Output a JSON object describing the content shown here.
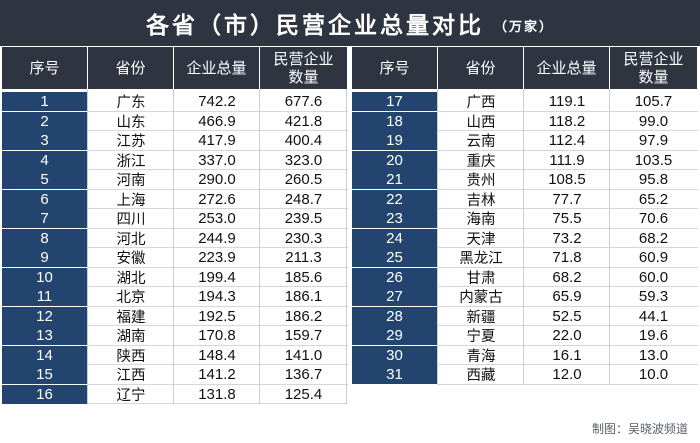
{
  "title": "各省（市）民营企业总量对比",
  "unit": "（万家）",
  "headers": [
    "序号",
    "省份",
    "企业总量",
    "民营企业\n数量"
  ],
  "left_rows": [
    [
      "1",
      "广东",
      "742.2",
      "677.6"
    ],
    [
      "2",
      "山东",
      "466.9",
      "421.8"
    ],
    [
      "3",
      "江苏",
      "417.9",
      "400.4"
    ],
    [
      "4",
      "浙江",
      "337.0",
      "323.0"
    ],
    [
      "5",
      "河南",
      "290.0",
      "260.5"
    ],
    [
      "6",
      "上海",
      "272.6",
      "248.7"
    ],
    [
      "7",
      "四川",
      "253.0",
      "239.5"
    ],
    [
      "8",
      "河北",
      "244.9",
      "230.3"
    ],
    [
      "9",
      "安徽",
      "223.9",
      "211.3"
    ],
    [
      "10",
      "湖北",
      "199.4",
      "185.6"
    ],
    [
      "11",
      "北京",
      "194.3",
      "186.1"
    ],
    [
      "12",
      "福建",
      "192.5",
      "186.2"
    ],
    [
      "13",
      "湖南",
      "170.8",
      "159.7"
    ],
    [
      "14",
      "陕西",
      "148.4",
      "141.0"
    ],
    [
      "15",
      "江西",
      "141.2",
      "136.7"
    ],
    [
      "16",
      "辽宁",
      "131.8",
      "125.4"
    ]
  ],
  "right_rows": [
    [
      "17",
      "广西",
      "119.1",
      "105.7"
    ],
    [
      "18",
      "山西",
      "118.2",
      "99.0"
    ],
    [
      "19",
      "云南",
      "112.4",
      "97.9"
    ],
    [
      "20",
      "重庆",
      "111.9",
      "103.5"
    ],
    [
      "21",
      "贵州",
      "108.5",
      "95.8"
    ],
    [
      "22",
      "吉林",
      "77.7",
      "65.2"
    ],
    [
      "23",
      "海南",
      "75.5",
      "70.6"
    ],
    [
      "24",
      "天津",
      "73.2",
      "68.2"
    ],
    [
      "25",
      "黑龙江",
      "71.8",
      "60.9"
    ],
    [
      "26",
      "甘肃",
      "68.2",
      "60.0"
    ],
    [
      "27",
      "内蒙古",
      "65.9",
      "59.3"
    ],
    [
      "28",
      "新疆",
      "52.5",
      "44.1"
    ],
    [
      "29",
      "宁夏",
      "22.0",
      "19.6"
    ],
    [
      "30",
      "青海",
      "16.1",
      "13.0"
    ],
    [
      "31",
      "西藏",
      "12.0",
      "10.0"
    ]
  ],
  "credit": "制图：吴晓波频道",
  "colors": {
    "header_bg": "#2f3540",
    "index_bg": "#22446e",
    "text": "#111111"
  }
}
